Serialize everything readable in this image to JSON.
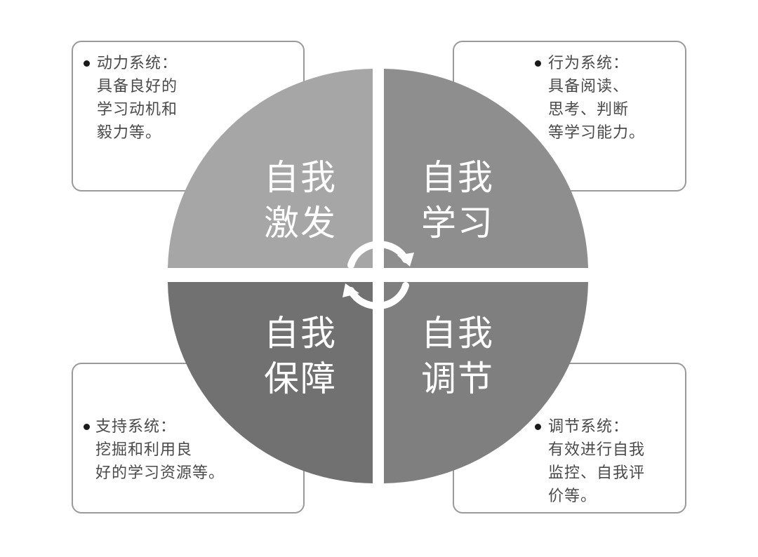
{
  "quadrants": {
    "top_left": {
      "line1": "自我",
      "line2": "激发"
    },
    "top_right": {
      "line1": "自我",
      "line2": "学习"
    },
    "bottom_left": {
      "line1": "自我",
      "line2": "保障"
    },
    "bottom_right": {
      "line1": "自我",
      "line2": "调节"
    }
  },
  "notes": {
    "top_left": {
      "lines": [
        "动力系统：",
        "具备良好的",
        "学习动机和",
        "毅力等。"
      ]
    },
    "top_right": {
      "lines": [
        "行为系统：",
        "具备阅读、",
        "思考、判断",
        "等学习能力。"
      ]
    },
    "bottom_left": {
      "lines": [
        "支持系统：",
        "挖掘和利用良",
        "好的学习资源等。"
      ]
    },
    "bottom_right": {
      "lines": [
        "调节系统：",
        "有效进行自我",
        "监控、自我评",
        "价等。"
      ]
    }
  },
  "colors": {
    "top_left": "#a6a6a6",
    "top_right": "#8e8e8e",
    "bottom_left": "#717171",
    "bottom_right": "#7f7f7f",
    "border": "#9a9a9a",
    "text": "#4a4a4a"
  },
  "icons": {
    "cycle": "cycle-arrows-icon"
  }
}
